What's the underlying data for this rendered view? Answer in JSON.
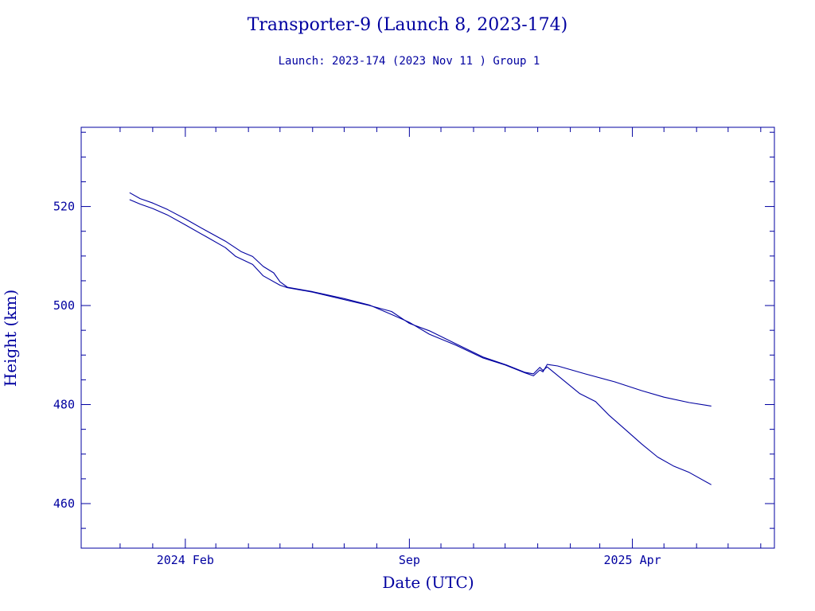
{
  "colors": {
    "ink": "#0000a0",
    "background": "#ffffff"
  },
  "chart_data": {
    "type": "line",
    "title": "Transporter-9 (Launch 8, 2023-174)",
    "subtitle": "Launch: 2023-174  (2023 Nov 11 )  Group 1",
    "xlabel": "Date (UTC)",
    "ylabel": "Height (km)",
    "x_type": "date",
    "xlim": [
      "2023-10-25",
      "2025-08-14"
    ],
    "ylim": [
      451,
      536
    ],
    "x_tick_labels": [
      {
        "date": "2024-02-01",
        "label": "2024 Feb"
      },
      {
        "date": "2024-09-01",
        "label": "Sep"
      },
      {
        "date": "2025-04-01",
        "label": "2025 Apr"
      }
    ],
    "x_minor_ticks": [
      "2023-12-01",
      "2024-01-01",
      "2024-03-01",
      "2024-04-01",
      "2024-05-01",
      "2024-06-01",
      "2024-07-01",
      "2024-08-01",
      "2024-10-01",
      "2024-11-01",
      "2024-12-01",
      "2025-01-01",
      "2025-02-01",
      "2025-03-01",
      "2025-05-01",
      "2025-06-01",
      "2025-07-01",
      "2025-08-01"
    ],
    "y_ticks": [
      460,
      480,
      500,
      520
    ],
    "y_minor_step": 5,
    "grid": false,
    "legend": "none",
    "series": [
      {
        "values": [
          [
            "2023-12-10",
            522.8
          ],
          [
            "2023-12-20",
            521.6
          ],
          [
            "2024-01-01",
            520.7
          ],
          [
            "2024-01-15",
            519.4
          ],
          [
            "2024-02-01",
            517.5
          ],
          [
            "2024-02-20",
            515.2
          ],
          [
            "2024-03-10",
            513.0
          ],
          [
            "2024-03-25",
            510.9
          ],
          [
            "2024-04-05",
            509.9
          ],
          [
            "2024-04-15",
            507.9
          ],
          [
            "2024-04-25",
            506.6
          ],
          [
            "2024-05-01",
            504.8
          ],
          [
            "2024-05-08",
            503.7
          ],
          [
            "2024-06-01",
            502.8
          ],
          [
            "2024-07-01",
            501.4
          ],
          [
            "2024-07-25",
            500.1
          ],
          [
            "2024-08-15",
            498.2
          ],
          [
            "2024-09-01",
            496.6
          ],
          [
            "2024-09-20",
            494.2
          ],
          [
            "2024-10-15",
            492.0
          ],
          [
            "2024-11-10",
            489.4
          ],
          [
            "2024-12-01",
            488.0
          ],
          [
            "2024-12-20",
            486.4
          ],
          [
            "2024-12-28",
            485.8
          ],
          [
            "2025-01-03",
            487.0
          ],
          [
            "2025-01-06",
            486.6
          ],
          [
            "2025-01-10",
            488.1
          ],
          [
            "2025-01-20",
            487.8
          ],
          [
            "2025-02-15",
            486.2
          ],
          [
            "2025-03-15",
            484.6
          ],
          [
            "2025-04-10",
            482.8
          ],
          [
            "2025-05-01",
            481.5
          ],
          [
            "2025-05-25",
            480.4
          ],
          [
            "2025-06-15",
            479.7
          ]
        ]
      },
      {
        "values": [
          [
            "2023-12-10",
            521.4
          ],
          [
            "2023-12-20",
            520.5
          ],
          [
            "2024-01-01",
            519.6
          ],
          [
            "2024-01-15",
            518.3
          ],
          [
            "2024-02-01",
            516.3
          ],
          [
            "2024-02-20",
            514.0
          ],
          [
            "2024-03-10",
            511.7
          ],
          [
            "2024-03-20",
            509.9
          ],
          [
            "2024-04-05",
            508.3
          ],
          [
            "2024-04-15",
            506.0
          ],
          [
            "2024-05-01",
            504.1
          ],
          [
            "2024-05-08",
            503.6
          ],
          [
            "2024-06-01",
            502.7
          ],
          [
            "2024-07-01",
            501.2
          ],
          [
            "2024-07-25",
            500.0
          ],
          [
            "2024-08-15",
            498.8
          ],
          [
            "2024-09-01",
            496.4
          ],
          [
            "2024-09-20",
            494.9
          ],
          [
            "2024-10-15",
            492.3
          ],
          [
            "2024-11-10",
            489.6
          ],
          [
            "2024-12-01",
            488.1
          ],
          [
            "2024-12-20",
            486.5
          ],
          [
            "2024-12-28",
            486.2
          ],
          [
            "2025-01-03",
            487.5
          ],
          [
            "2025-01-06",
            486.9
          ],
          [
            "2025-01-10",
            487.6
          ],
          [
            "2025-01-25",
            485.0
          ],
          [
            "2025-02-10",
            482.2
          ],
          [
            "2025-02-25",
            480.6
          ],
          [
            "2025-03-10",
            477.8
          ],
          [
            "2025-03-25",
            475.0
          ],
          [
            "2025-04-10",
            472.0
          ],
          [
            "2025-04-25",
            469.4
          ],
          [
            "2025-05-10",
            467.6
          ],
          [
            "2025-05-25",
            466.3
          ],
          [
            "2025-06-15",
            463.8
          ]
        ]
      }
    ]
  }
}
